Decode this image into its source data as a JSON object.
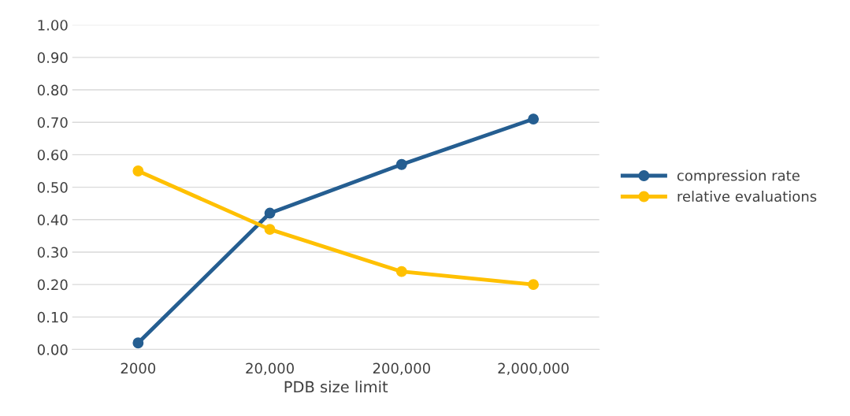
{
  "chart_data": {
    "type": "line",
    "xlabel": "PDB size limit",
    "categories": [
      "2000",
      "20,000",
      "200,000",
      "2,000,000"
    ],
    "series": [
      {
        "name": "compression rate",
        "color": "#255e91",
        "values": [
          0.02,
          0.42,
          0.57,
          0.71
        ]
      },
      {
        "name": "relative evaluations",
        "color": "#ffc000",
        "values": [
          0.55,
          0.37,
          0.24,
          0.2
        ]
      }
    ],
    "ylim": [
      0,
      1
    ],
    "yticks": [
      {
        "value": 0,
        "label": "0.00"
      },
      {
        "value": 0.1,
        "label": "0.10"
      },
      {
        "value": 0.2,
        "label": "0.20"
      },
      {
        "value": 0.3,
        "label": "0.30"
      },
      {
        "value": 0.4,
        "label": "0.40"
      },
      {
        "value": 0.5,
        "label": "0.50"
      },
      {
        "value": 0.6,
        "label": "0.60"
      },
      {
        "value": 0.7,
        "label": "0.70"
      },
      {
        "value": 0.8,
        "label": "0.80"
      },
      {
        "value": 0.9,
        "label": "0.90"
      },
      {
        "value": 1,
        "label": "1.00"
      }
    ],
    "grid": "y",
    "legend": "right",
    "marker": "circle",
    "line_style": "solid"
  }
}
